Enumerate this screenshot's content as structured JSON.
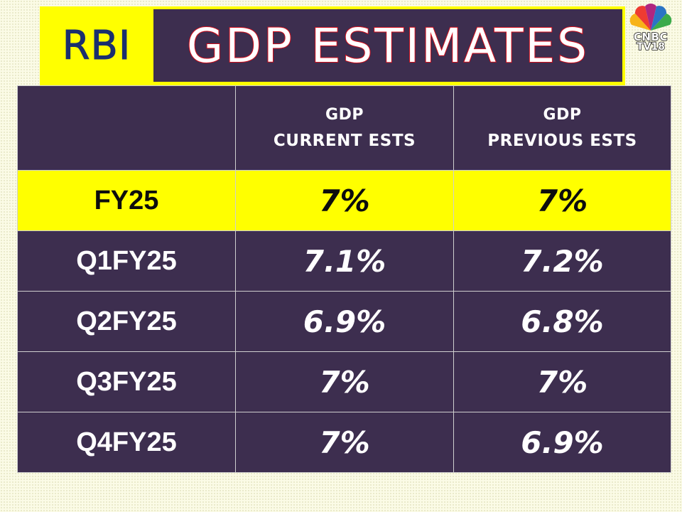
{
  "header": {
    "badge": "RBI",
    "title": "GDP ESTIMATES",
    "logo": {
      "line1": "CNBC",
      "line2": "TV18"
    }
  },
  "table": {
    "columns": [
      {
        "line1": "",
        "line2": ""
      },
      {
        "line1": "GDP",
        "line2": "CURRENT ESTS"
      },
      {
        "line1": "GDP",
        "line2": "PREVIOUS ESTS"
      }
    ],
    "rows": [
      {
        "label": "FY25",
        "current": "7%",
        "previous": "7%",
        "highlight": true
      },
      {
        "label": "Q1FY25",
        "current": "7.1%",
        "previous": "7.2%"
      },
      {
        "label": "Q2FY25",
        "current": "6.9%",
        "previous": "6.8%"
      },
      {
        "label": "Q3FY25",
        "current": "7%",
        "previous": "7%"
      },
      {
        "label": "Q4FY25",
        "current": "7%",
        "previous": "6.9%"
      }
    ]
  },
  "colors": {
    "purple": "#3d2e4f",
    "yellow": "#ffff00",
    "navy": "#1a2f6e",
    "red": "#d40e1c"
  }
}
